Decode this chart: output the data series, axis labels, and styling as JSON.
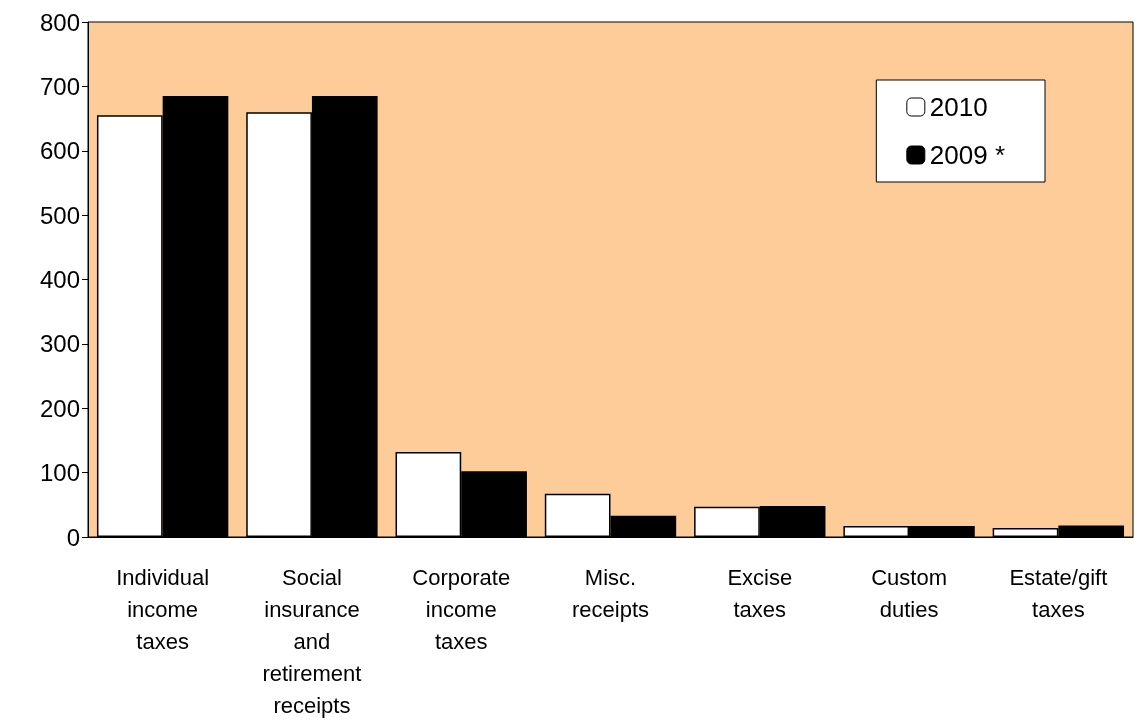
{
  "chart_data": {
    "type": "bar",
    "categories": [
      "Individual income taxes",
      "Social insurance and retirement receipts",
      "Corporate income taxes",
      "Misc. receipts",
      "Excise taxes",
      "Custom duties",
      "Estate/gift taxes"
    ],
    "series": [
      {
        "name": "2010",
        "color": "#ffffff",
        "values": [
          655,
          660,
          132,
          67,
          47,
          17,
          14
        ]
      },
      {
        "name": "2009 *",
        "color": "#000000",
        "values": [
          685,
          685,
          102,
          33,
          48,
          17,
          18
        ]
      }
    ],
    "ylim": [
      0,
      800
    ],
    "yticks": [
      0,
      100,
      200,
      300,
      400,
      500,
      600,
      700,
      800
    ],
    "grid": false,
    "legend": "top right"
  }
}
